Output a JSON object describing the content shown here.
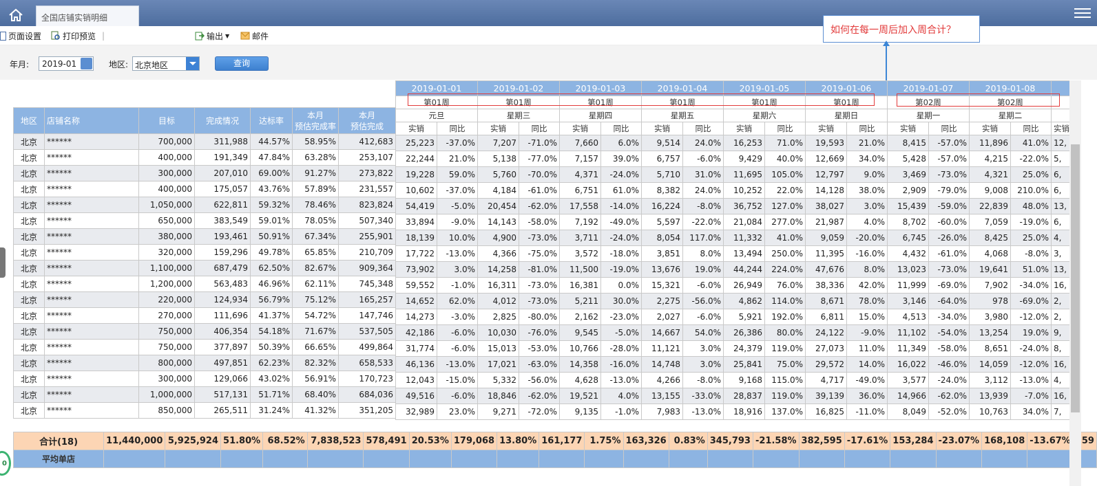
{
  "tab": {
    "title": "全国店铺实销明细"
  },
  "toolbar": {
    "page_setup": "页面设置",
    "print_preview": "打印预览",
    "export": "输出",
    "mail": "邮件"
  },
  "filter": {
    "year_month_label": "年月:",
    "year_month_value": "2019-01",
    "region_label": "地区:",
    "region_value": "北京地区",
    "query_label": "查询"
  },
  "note": "如何在每一周后加入周合计？",
  "badge": "0",
  "headers": {
    "region": "地区",
    "store": "店铺名称",
    "target": "目标",
    "completion": "完成情况",
    "rate": "达标率",
    "month_rate": [
      "本月",
      "预估完成率"
    ],
    "month_complete": [
      "本月",
      "预估完成"
    ],
    "sales": "实销",
    "yoy": "同比"
  },
  "days": [
    {
      "date": "2019-01-01",
      "week": "第01周",
      "weekday": "元旦"
    },
    {
      "date": "2019-01-02",
      "week": "第01周",
      "weekday": "星期三"
    },
    {
      "date": "2019-01-03",
      "week": "第01周",
      "weekday": "星期四"
    },
    {
      "date": "2019-01-04",
      "week": "第01周",
      "weekday": "星期五"
    },
    {
      "date": "2019-01-05",
      "week": "第01周",
      "weekday": "星期六"
    },
    {
      "date": "2019-01-06",
      "week": "第01周",
      "weekday": "星期日"
    },
    {
      "date": "2019-01-07",
      "week": "第02周",
      "weekday": "星期一"
    },
    {
      "date": "2019-01-08",
      "week": "第02周",
      "weekday": "星期二"
    }
  ],
  "rows": [
    {
      "region": "北京",
      "store": "******",
      "target": "700,000",
      "done": "311,988",
      "rate": "44.57%",
      "mrate": "58.95%",
      "mdone": "412,683",
      "d": [
        [
          "25,223",
          "-37.0%"
        ],
        [
          "7,207",
          "-71.0%"
        ],
        [
          "7,660",
          "6.0%"
        ],
        [
          "9,514",
          "24.0%"
        ],
        [
          "16,253",
          "71.0%"
        ],
        [
          "19,593",
          "21.0%"
        ],
        [
          "8,415",
          "-57.0%"
        ],
        [
          "11,896",
          "41.0%"
        ]
      ],
      "cut": "12,"
    },
    {
      "region": "北京",
      "store": "******",
      "target": "400,000",
      "done": "191,349",
      "rate": "47.84%",
      "mrate": "63.28%",
      "mdone": "253,107",
      "d": [
        [
          "22,244",
          "21.0%"
        ],
        [
          "5,138",
          "-77.0%"
        ],
        [
          "7,157",
          "39.0%"
        ],
        [
          "6,757",
          "-6.0%"
        ],
        [
          "9,429",
          "40.0%"
        ],
        [
          "12,669",
          "34.0%"
        ],
        [
          "5,428",
          "-57.0%"
        ],
        [
          "4,215",
          "-22.0%"
        ]
      ],
      "cut": "5,"
    },
    {
      "region": "北京",
      "store": "******",
      "target": "300,000",
      "done": "207,010",
      "rate": "69.00%",
      "mrate": "91.27%",
      "mdone": "273,822",
      "d": [
        [
          "19,228",
          "59.0%"
        ],
        [
          "5,760",
          "-70.0%"
        ],
        [
          "4,371",
          "-24.0%"
        ],
        [
          "5,710",
          "31.0%"
        ],
        [
          "11,695",
          "105.0%"
        ],
        [
          "12,797",
          "9.0%"
        ],
        [
          "3,469",
          "-73.0%"
        ],
        [
          "4,321",
          "25.0%"
        ]
      ],
      "cut": "6,"
    },
    {
      "region": "北京",
      "store": "******",
      "target": "400,000",
      "done": "175,057",
      "rate": "43.76%",
      "mrate": "57.89%",
      "mdone": "231,557",
      "d": [
        [
          "10,602",
          "-37.0%"
        ],
        [
          "4,184",
          "-61.0%"
        ],
        [
          "6,751",
          "61.0%"
        ],
        [
          "8,382",
          "24.0%"
        ],
        [
          "10,252",
          "22.0%"
        ],
        [
          "14,128",
          "38.0%"
        ],
        [
          "2,909",
          "-79.0%"
        ],
        [
          "9,008",
          "210.0%"
        ]
      ],
      "cut": "6,"
    },
    {
      "region": "北京",
      "store": "******",
      "target": "1,050,000",
      "done": "622,811",
      "rate": "59.32%",
      "mrate": "78.46%",
      "mdone": "823,824",
      "d": [
        [
          "54,419",
          "-5.0%"
        ],
        [
          "20,454",
          "-62.0%"
        ],
        [
          "17,558",
          "-14.0%"
        ],
        [
          "16,224",
          "-8.0%"
        ],
        [
          "36,752",
          "127.0%"
        ],
        [
          "38,027",
          "3.0%"
        ],
        [
          "15,439",
          "-59.0%"
        ],
        [
          "22,839",
          "48.0%"
        ]
      ],
      "cut": "13,"
    },
    {
      "region": "北京",
      "store": "******",
      "target": "650,000",
      "done": "383,549",
      "rate": "59.01%",
      "mrate": "78.05%",
      "mdone": "507,340",
      "d": [
        [
          "33,894",
          "-9.0%"
        ],
        [
          "14,143",
          "-58.0%"
        ],
        [
          "7,192",
          "-49.0%"
        ],
        [
          "5,597",
          "-22.0%"
        ],
        [
          "21,084",
          "277.0%"
        ],
        [
          "21,987",
          "4.0%"
        ],
        [
          "8,702",
          "-60.0%"
        ],
        [
          "7,059",
          "-19.0%"
        ]
      ],
      "cut": "6,"
    },
    {
      "region": "北京",
      "store": "******",
      "target": "380,000",
      "done": "193,461",
      "rate": "50.91%",
      "mrate": "67.34%",
      "mdone": "255,901",
      "d": [
        [
          "18,139",
          "10.0%"
        ],
        [
          "4,900",
          "-73.0%"
        ],
        [
          "3,711",
          "-24.0%"
        ],
        [
          "8,054",
          "117.0%"
        ],
        [
          "11,332",
          "41.0%"
        ],
        [
          "9,059",
          "-20.0%"
        ],
        [
          "6,745",
          "-26.0%"
        ],
        [
          "8,425",
          "25.0%"
        ]
      ],
      "cut": "4,"
    },
    {
      "region": "北京",
      "store": "******",
      "target": "320,000",
      "done": "159,296",
      "rate": "49.78%",
      "mrate": "65.85%",
      "mdone": "210,709",
      "d": [
        [
          "17,722",
          "-13.0%"
        ],
        [
          "4,366",
          "-75.0%"
        ],
        [
          "3,572",
          "-18.0%"
        ],
        [
          "3,851",
          "8.0%"
        ],
        [
          "13,494",
          "250.0%"
        ],
        [
          "11,395",
          "-16.0%"
        ],
        [
          "4,432",
          "-61.0%"
        ],
        [
          "4,068",
          "-8.0%"
        ]
      ],
      "cut": "3,"
    },
    {
      "region": "北京",
      "store": "******",
      "target": "1,100,000",
      "done": "687,479",
      "rate": "62.50%",
      "mrate": "82.67%",
      "mdone": "909,364",
      "d": [
        [
          "73,902",
          "3.0%"
        ],
        [
          "14,258",
          "-81.0%"
        ],
        [
          "11,500",
          "-19.0%"
        ],
        [
          "13,676",
          "19.0%"
        ],
        [
          "44,244",
          "224.0%"
        ],
        [
          "47,676",
          "8.0%"
        ],
        [
          "13,023",
          "-73.0%"
        ],
        [
          "19,641",
          "51.0%"
        ]
      ],
      "cut": "13,"
    },
    {
      "region": "北京",
      "store": "******",
      "target": "1,200,000",
      "done": "563,483",
      "rate": "46.96%",
      "mrate": "62.11%",
      "mdone": "745,348",
      "d": [
        [
          "59,552",
          "-1.0%"
        ],
        [
          "16,311",
          "-73.0%"
        ],
        [
          "16,381",
          "0.0%"
        ],
        [
          "15,321",
          "-6.0%"
        ],
        [
          "26,949",
          "76.0%"
        ],
        [
          "38,336",
          "42.0%"
        ],
        [
          "11,999",
          "-69.0%"
        ],
        [
          "7,902",
          "-34.0%"
        ]
      ],
      "cut": "16,"
    },
    {
      "region": "北京",
      "store": "******",
      "target": "220,000",
      "done": "124,934",
      "rate": "56.79%",
      "mrate": "75.12%",
      "mdone": "165,257",
      "d": [
        [
          "14,652",
          "62.0%"
        ],
        [
          "4,012",
          "-73.0%"
        ],
        [
          "5,211",
          "30.0%"
        ],
        [
          "2,275",
          "-56.0%"
        ],
        [
          "4,862",
          "114.0%"
        ],
        [
          "8,671",
          "78.0%"
        ],
        [
          "3,146",
          "-64.0%"
        ],
        [
          "978",
          "-69.0%"
        ]
      ],
      "cut": "2,"
    },
    {
      "region": "北京",
      "store": "******",
      "target": "270,000",
      "done": "111,696",
      "rate": "41.37%",
      "mrate": "54.72%",
      "mdone": "147,746",
      "d": [
        [
          "14,273",
          "-3.0%"
        ],
        [
          "2,825",
          "-80.0%"
        ],
        [
          "2,162",
          "-23.0%"
        ],
        [
          "2,027",
          "-6.0%"
        ],
        [
          "5,921",
          "192.0%"
        ],
        [
          "6,811",
          "15.0%"
        ],
        [
          "4,513",
          "-34.0%"
        ],
        [
          "3,980",
          "-12.0%"
        ]
      ],
      "cut": "2,"
    },
    {
      "region": "北京",
      "store": "******",
      "target": "750,000",
      "done": "406,354",
      "rate": "54.18%",
      "mrate": "71.67%",
      "mdone": "537,505",
      "d": [
        [
          "42,186",
          "-6.0%"
        ],
        [
          "10,030",
          "-76.0%"
        ],
        [
          "9,545",
          "-5.0%"
        ],
        [
          "14,667",
          "54.0%"
        ],
        [
          "26,386",
          "80.0%"
        ],
        [
          "24,122",
          "-9.0%"
        ],
        [
          "11,102",
          "-54.0%"
        ],
        [
          "13,254",
          "19.0%"
        ]
      ],
      "cut": "9,"
    },
    {
      "region": "北京",
      "store": "******",
      "target": "750,000",
      "done": "377,897",
      "rate": "50.39%",
      "mrate": "66.65%",
      "mdone": "499,864",
      "d": [
        [
          "31,774",
          "-6.0%"
        ],
        [
          "15,013",
          "-53.0%"
        ],
        [
          "10,766",
          "-28.0%"
        ],
        [
          "11,121",
          "3.0%"
        ],
        [
          "24,379",
          "119.0%"
        ],
        [
          "27,073",
          "11.0%"
        ],
        [
          "11,349",
          "-58.0%"
        ],
        [
          "8,651",
          "-24.0%"
        ]
      ],
      "cut": "8,"
    },
    {
      "region": "北京",
      "store": "******",
      "target": "800,000",
      "done": "497,851",
      "rate": "62.23%",
      "mrate": "82.32%",
      "mdone": "658,533",
      "d": [
        [
          "46,136",
          "-13.0%"
        ],
        [
          "17,021",
          "-63.0%"
        ],
        [
          "14,358",
          "-16.0%"
        ],
        [
          "14,748",
          "3.0%"
        ],
        [
          "25,841",
          "75.0%"
        ],
        [
          "29,572",
          "14.0%"
        ],
        [
          "16,022",
          "-46.0%"
        ],
        [
          "14,059",
          "-12.0%"
        ]
      ],
      "cut": "16,"
    },
    {
      "region": "北京",
      "store": "******",
      "target": "300,000",
      "done": "129,066",
      "rate": "43.02%",
      "mrate": "56.91%",
      "mdone": "170,723",
      "d": [
        [
          "12,043",
          "-15.0%"
        ],
        [
          "5,332",
          "-56.0%"
        ],
        [
          "4,628",
          "-13.0%"
        ],
        [
          "4,266",
          "-8.0%"
        ],
        [
          "9,168",
          "115.0%"
        ],
        [
          "4,717",
          "-49.0%"
        ],
        [
          "3,577",
          "-24.0%"
        ],
        [
          "3,112",
          "-13.0%"
        ]
      ],
      "cut": "4,"
    },
    {
      "region": "北京",
      "store": "******",
      "target": "1,000,000",
      "done": "517,131",
      "rate": "51.71%",
      "mrate": "68.40%",
      "mdone": "684,036",
      "d": [
        [
          "49,516",
          "-6.0%"
        ],
        [
          "18,846",
          "-62.0%"
        ],
        [
          "19,521",
          "4.0%"
        ],
        [
          "13,155",
          "-33.0%"
        ],
        [
          "28,837",
          "119.0%"
        ],
        [
          "39,139",
          "36.0%"
        ],
        [
          "14,966",
          "-62.0%"
        ],
        [
          "13,939",
          "-7.0%"
        ]
      ],
      "cut": "16,"
    },
    {
      "region": "北京",
      "store": "******",
      "target": "850,000",
      "done": "265,511",
      "rate": "31.24%",
      "mrate": "41.32%",
      "mdone": "351,205",
      "d": [
        [
          "32,989",
          "23.0%"
        ],
        [
          "9,271",
          "-72.0%"
        ],
        [
          "9,135",
          "-1.0%"
        ],
        [
          "7,983",
          "-13.0%"
        ],
        [
          "18,916",
          "137.0%"
        ],
        [
          "16,825",
          "-11.0%"
        ],
        [
          "8,049",
          "-52.0%"
        ],
        [
          "10,763",
          "34.0%"
        ]
      ],
      "cut": "7,"
    }
  ],
  "total": {
    "label": "合计(18)",
    "target": "11,440,000",
    "done": "5,925,924",
    "rate": "51.80%",
    "mrate": "68.52%",
    "mdone": "7,838,523",
    "d": [
      [
        "578,491",
        "20.53%"
      ],
      [
        "179,068",
        "13.80%"
      ],
      [
        "161,177",
        "1.75%"
      ],
      [
        "163,326",
        "0.83%"
      ],
      [
        "345,793",
        "-21.58%"
      ],
      [
        "382,595",
        "-17.61%"
      ],
      [
        "153,284",
        "-23.07%"
      ],
      [
        "168,108",
        "-13.67%"
      ]
    ],
    "cut": "159"
  },
  "avg": {
    "label": "平均单店"
  }
}
